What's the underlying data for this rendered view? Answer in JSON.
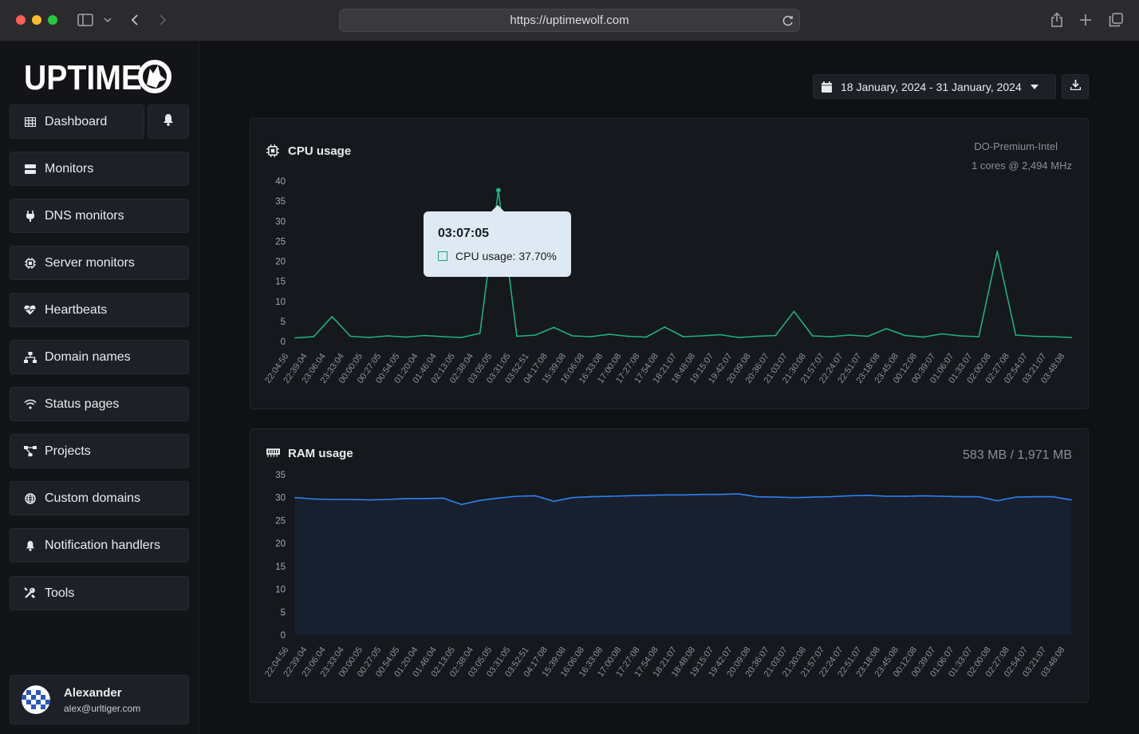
{
  "browser": {
    "url": "https://uptimewolf.com"
  },
  "brand": {
    "logo_text": "UPTIME"
  },
  "sidebar": {
    "items": [
      {
        "label": "Dashboard",
        "icon": "grid-icon"
      },
      {
        "label": "Monitors",
        "icon": "server-icon"
      },
      {
        "label": "DNS monitors",
        "icon": "plug-icon"
      },
      {
        "label": "Server monitors",
        "icon": "chip-icon"
      },
      {
        "label": "Heartbeats",
        "icon": "heart-pulse-icon"
      },
      {
        "label": "Domain names",
        "icon": "sitemap-icon"
      },
      {
        "label": "Status pages",
        "icon": "wifi-icon"
      },
      {
        "label": "Projects",
        "icon": "diagram-icon"
      },
      {
        "label": "Custom domains",
        "icon": "globe-icon"
      },
      {
        "label": "Notification handlers",
        "icon": "bell-icon"
      },
      {
        "label": "Tools",
        "icon": "tools-icon"
      }
    ],
    "user": {
      "name": "Alexander",
      "email": "alex@urltiger.com"
    }
  },
  "toolbar": {
    "date_range": "18 January, 2024 - 31 January, 2024"
  },
  "cpu": {
    "title": "CPU usage",
    "server_type": "DO-Premium-Intel",
    "cpu_info": "1 cores @ 2,494 MHz",
    "tooltip": {
      "time": "03:07:05",
      "label": "CPU usage: 37.70%"
    }
  },
  "ram": {
    "title": "RAM usage",
    "usage": "583 MB / 1,971 MB"
  },
  "colors": {
    "cpu_line": "#21b07f",
    "ram_line": "#2f7ff0",
    "accent": "#1d2127"
  },
  "chart_data": [
    {
      "type": "line",
      "title": "CPU usage",
      "ylim": [
        0,
        40
      ],
      "yticks": [
        0,
        5,
        10,
        15,
        20,
        25,
        30,
        35,
        40
      ],
      "categories": [
        "22:04:56",
        "22:39:04",
        "23:06:04",
        "23:33:04",
        "00:00:05",
        "00:27:05",
        "00:54:05",
        "01:20:04",
        "01:46:04",
        "02:13:05",
        "02:38:04",
        "03:05:05",
        "03:31:05",
        "03:52:51",
        "04:17:08",
        "15:39:08",
        "16:06:08",
        "16:33:08",
        "17:00:08",
        "17:27:08",
        "17:54:08",
        "18:21:07",
        "18:48:08",
        "19:15:07",
        "19:42:07",
        "20:09:08",
        "20:36:07",
        "21:03:07",
        "21:30:08",
        "21:57:07",
        "22:24:07",
        "22:51:07",
        "23:18:08",
        "23:45:08",
        "00:12:08",
        "00:39:07",
        "01:06:07",
        "01:33:07",
        "02:00:08",
        "02:27:08",
        "02:54:07",
        "03:21:07",
        "03:48:08"
      ],
      "series": [
        {
          "values": [
            0.9,
            1.2,
            6.2,
            1.3,
            1.0,
            1.4,
            1.1,
            1.5,
            1.2,
            1.0,
            2.0,
            37.7,
            1.3,
            1.6,
            3.5,
            1.4,
            1.2,
            1.8,
            1.3,
            1.1,
            3.6,
            1.2,
            1.4,
            1.7,
            1.0,
            1.3,
            1.5,
            7.5,
            1.4,
            1.2,
            1.6,
            1.3,
            3.2,
            1.5,
            1.1,
            1.9,
            1.4,
            1.2,
            22.5,
            1.6,
            1.3,
            1.2,
            1.0
          ]
        }
      ]
    },
    {
      "type": "area",
      "title": "RAM usage",
      "ylim": [
        0,
        35
      ],
      "yticks": [
        0,
        5,
        10,
        15,
        20,
        25,
        30,
        35
      ],
      "categories": [
        "22:04:56",
        "22:39:04",
        "23:06:04",
        "23:33:04",
        "00:00:05",
        "00:27:05",
        "00:54:05",
        "01:20:04",
        "01:46:04",
        "02:13:05",
        "02:38:04",
        "03:05:05",
        "03:31:05",
        "03:52:51",
        "04:17:08",
        "15:39:08",
        "16:06:08",
        "16:33:08",
        "17:00:08",
        "17:27:08",
        "17:54:08",
        "18:21:07",
        "18:48:08",
        "19:15:07",
        "19:42:07",
        "20:09:08",
        "20:36:07",
        "21:03:07",
        "21:30:08",
        "21:57:07",
        "22:24:07",
        "22:51:07",
        "23:18:08",
        "23:45:08",
        "00:12:08",
        "00:39:07",
        "01:06:07",
        "01:33:07",
        "02:00:08",
        "02:27:08",
        "02:54:07",
        "03:21:07",
        "03:48:08"
      ],
      "series": [
        {
          "values": [
            30.0,
            29.7,
            29.6,
            29.6,
            29.5,
            29.6,
            29.8,
            29.8,
            29.9,
            28.5,
            29.4,
            29.9,
            30.3,
            30.4,
            29.2,
            30.0,
            30.2,
            30.3,
            30.4,
            30.5,
            30.6,
            30.6,
            30.7,
            30.7,
            30.8,
            30.2,
            30.1,
            30.0,
            30.1,
            30.2,
            30.4,
            30.5,
            30.3,
            30.3,
            30.4,
            30.3,
            30.2,
            30.2,
            29.3,
            30.1,
            30.2,
            30.2,
            29.5
          ]
        }
      ]
    }
  ]
}
